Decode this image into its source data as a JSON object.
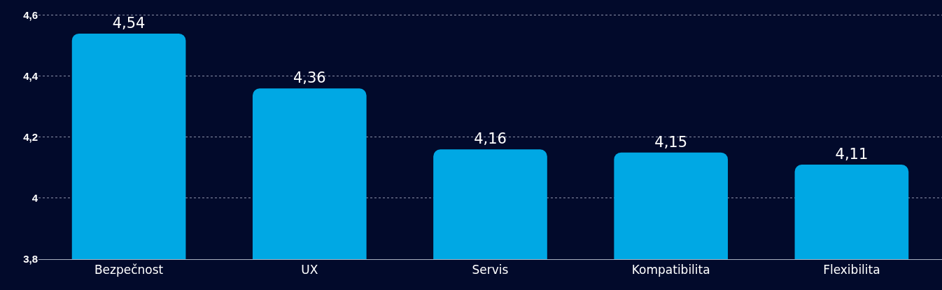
{
  "chart_data": {
    "type": "bar",
    "categories": [
      "Bezpečnost",
      "UX",
      "Servis",
      "Kompatibilita",
      "Flexibilita"
    ],
    "values": [
      4.54,
      4.36,
      4.16,
      4.15,
      4.11
    ],
    "value_labels": [
      "4,54",
      "4,36",
      "4,16",
      "4,15",
      "4,11"
    ],
    "color": "#00a8e4",
    "ylim": [
      3.8,
      4.65
    ],
    "yticks": [
      {
        "value": 3.8,
        "label": "3,8"
      },
      4,
      {
        "value": 4.2,
        "label": "4,2"
      },
      {
        "value": 4.4,
        "label": "4,4"
      },
      {
        "value": 4.6,
        "label": "4,6"
      }
    ],
    "grid": "y"
  }
}
